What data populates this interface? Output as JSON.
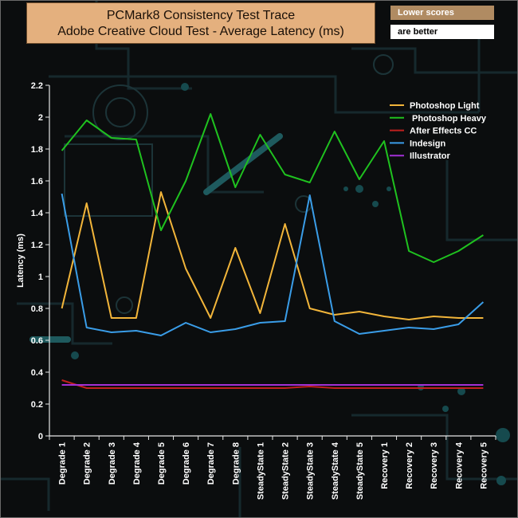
{
  "chart_data": {
    "type": "line",
    "title": [
      "PCMark8 Consistency Test Trace",
      "Adobe Creative Cloud Test -  Average Latency (ms)"
    ],
    "notes": [
      "Lower scores",
      "are better"
    ],
    "xlabel": "",
    "ylabel": "Latency (ms)",
    "ylim": [
      0,
      2.2
    ],
    "yticks": [
      0,
      0.2,
      0.4,
      0.6,
      0.8,
      1,
      1.2,
      1.4,
      1.6,
      1.8,
      2,
      2.2
    ],
    "categories": [
      "Degrade 1",
      "Degrade 2",
      "Degrade 3",
      "Degrade 4",
      "Degrade 5",
      "Degrade 6",
      "Degrade 7",
      "Degrade 8",
      "SteadyState 1",
      "SteadyState 2",
      "SteadyState 3",
      "SteadyState 4",
      "SteadyState 5",
      "Recovery 1",
      "Recovery 2",
      "Recovery 3",
      "Recovery 4",
      "Recovery 5"
    ],
    "legend_position": "top-right",
    "grid": false,
    "series": [
      {
        "name": "Photoshop Light",
        "color": "#f2b53a",
        "values": [
          0.8,
          1.46,
          0.74,
          0.74,
          1.53,
          1.05,
          0.74,
          1.18,
          0.77,
          1.33,
          0.8,
          0.76,
          0.78,
          0.75,
          0.73,
          0.75,
          0.74,
          0.74
        ]
      },
      {
        "name": " Photoshop Heavy",
        "color": "#1fc21f",
        "values": [
          1.79,
          1.98,
          1.87,
          1.86,
          1.29,
          1.6,
          2.02,
          1.56,
          1.89,
          1.64,
          1.59,
          1.91,
          1.61,
          1.85,
          1.16,
          1.09,
          1.16,
          1.26
        ]
      },
      {
        "name": "After Effects CC",
        "color": "#c0201e",
        "values": [
          0.35,
          0.3,
          0.3,
          0.3,
          0.3,
          0.3,
          0.3,
          0.3,
          0.3,
          0.3,
          0.31,
          0.3,
          0.3,
          0.3,
          0.3,
          0.3,
          0.3,
          0.3
        ]
      },
      {
        "name": "Indesign",
        "color": "#3a9de8",
        "values": [
          1.52,
          0.68,
          0.65,
          0.66,
          0.63,
          0.71,
          0.65,
          0.67,
          0.71,
          0.72,
          1.51,
          0.72,
          0.64,
          0.66,
          0.68,
          0.67,
          0.7,
          0.84
        ]
      },
      {
        "name": "Illustrator",
        "color": "#a330d6",
        "values": [
          0.32,
          0.32,
          0.32,
          0.32,
          0.32,
          0.32,
          0.32,
          0.32,
          0.32,
          0.32,
          0.32,
          0.32,
          0.32,
          0.32,
          0.32,
          0.32,
          0.32,
          0.32
        ]
      }
    ]
  }
}
